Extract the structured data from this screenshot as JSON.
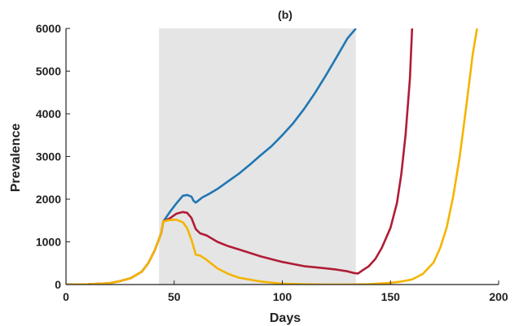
{
  "chart_data": {
    "type": "line",
    "title": "(b)",
    "xlabel": "Days",
    "ylabel": "Prevalence",
    "xlim": [
      0,
      200
    ],
    "ylim": [
      0,
      6000
    ],
    "xticks": [
      0,
      50,
      100,
      150,
      200
    ],
    "yticks": [
      0,
      1000,
      2000,
      3000,
      4000,
      5000,
      6000
    ],
    "grid": false,
    "legend": "none",
    "shaded_region": {
      "x_start": 43,
      "x_end": 134,
      "color": "#e5e5e5"
    },
    "series": [
      {
        "color": "#1f77b4",
        "x": [
          0,
          10,
          20,
          25,
          30,
          35,
          38,
          41,
          44,
          45,
          48,
          51,
          54,
          56,
          58,
          59,
          60,
          63,
          66,
          70,
          75,
          80,
          85,
          90,
          95,
          100,
          105,
          110,
          115,
          120,
          125,
          130,
          134
        ],
        "y": [
          0,
          5,
          30,
          80,
          150,
          300,
          500,
          800,
          1200,
          1480,
          1700,
          1900,
          2080,
          2100,
          2060,
          1960,
          1920,
          2040,
          2120,
          2240,
          2420,
          2600,
          2810,
          3030,
          3240,
          3500,
          3780,
          4110,
          4480,
          4890,
          5320,
          5760,
          6000
        ]
      },
      {
        "color": "#b01c36",
        "x": [
          0,
          10,
          20,
          25,
          30,
          35,
          38,
          41,
          44,
          45,
          48,
          51,
          54,
          56,
          58,
          60,
          62,
          65,
          70,
          75,
          80,
          90,
          100,
          110,
          120,
          125,
          130,
          133,
          135,
          137,
          140,
          143,
          146,
          150,
          153,
          155,
          157,
          159,
          160
        ],
        "y": [
          0,
          5,
          30,
          80,
          150,
          300,
          500,
          800,
          1200,
          1480,
          1550,
          1660,
          1700,
          1680,
          1560,
          1300,
          1200,
          1150,
          1000,
          900,
          820,
          660,
          530,
          430,
          380,
          350,
          310,
          270,
          260,
          330,
          430,
          600,
          860,
          1330,
          1910,
          2580,
          3510,
          4820,
          6000
        ]
      },
      {
        "color": "#f5b400",
        "x": [
          0,
          10,
          20,
          25,
          30,
          35,
          38,
          41,
          44,
          45,
          48,
          51,
          54,
          56,
          58,
          60,
          62,
          65,
          70,
          75,
          80,
          90,
          100,
          110,
          120,
          130,
          140,
          150,
          155,
          160,
          165,
          170,
          173,
          176,
          179,
          182,
          185,
          188,
          190
        ],
        "y": [
          0,
          5,
          30,
          80,
          150,
          300,
          500,
          800,
          1200,
          1480,
          1510,
          1520,
          1460,
          1320,
          1050,
          700,
          680,
          580,
          380,
          250,
          160,
          70,
          20,
          5,
          0,
          0,
          10,
          40,
          70,
          120,
          250,
          520,
          860,
          1340,
          2060,
          2990,
          4160,
          5380,
          6000
        ]
      }
    ]
  }
}
